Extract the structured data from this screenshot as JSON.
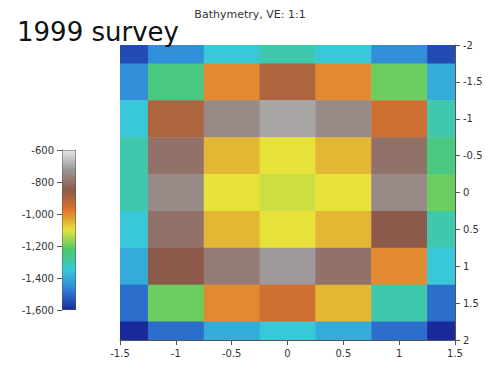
{
  "chart_data": {
    "type": "surface",
    "title": "Bathymetry, VE: 1:1",
    "annotations": [
      "1999 survey"
    ],
    "x": [
      -1.5,
      -1,
      -0.5,
      0,
      0.5,
      1,
      1.5
    ],
    "y": [
      -2,
      -1.5,
      -1,
      -0.5,
      0,
      0.5,
      1,
      1.5,
      2
    ],
    "z": [
      [
        -1550,
        -1450,
        -1350,
        -1300,
        -1350,
        -1450,
        -1550
      ],
      [
        -1450,
        -1250,
        -1000,
        -900,
        -1000,
        -1200,
        -1400
      ],
      [
        -1350,
        -900,
        -750,
        -700,
        -750,
        -950,
        -1300
      ],
      [
        -1300,
        -800,
        -1050,
        -1100,
        -1050,
        -800,
        -1250
      ],
      [
        -1300,
        -750,
        -1100,
        -1120,
        -1100,
        -750,
        -1200
      ],
      [
        -1350,
        -800,
        -1050,
        -1100,
        -1050,
        -850,
        -1300
      ],
      [
        -1400,
        -850,
        -780,
        -720,
        -800,
        -1000,
        -1350
      ],
      [
        -1500,
        -1200,
        -1000,
        -950,
        -1050,
        -1300,
        -1500
      ],
      [
        -1600,
        -1500,
        -1400,
        -1350,
        -1400,
        -1500,
        -1600
      ]
    ],
    "xlim": [
      -1.5,
      1.5
    ],
    "xticks": [
      -1.5,
      -1,
      -0.5,
      0,
      0.5,
      1,
      1.5
    ],
    "ylim": [
      -2,
      2
    ],
    "yticks": [
      -2,
      -1.5,
      -1,
      -0.5,
      0,
      0.5,
      1,
      1.5,
      2
    ],
    "zlim": [
      -1600,
      -600
    ],
    "zticks": [
      -1600,
      -1400,
      -1200,
      -1000,
      -800,
      -600
    ]
  }
}
